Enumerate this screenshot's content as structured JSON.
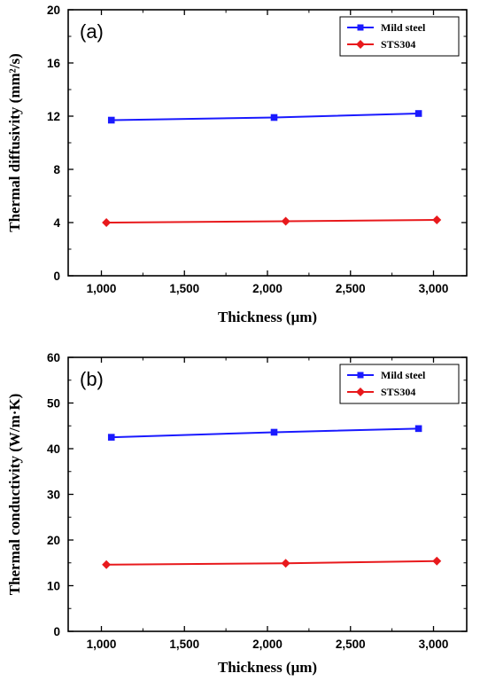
{
  "chart_data": [
    {
      "type": "line",
      "panel_label": "(a)",
      "xlabel": "Thickness (μm)",
      "ylabel": "Thermal diffusivity (mm²/s)",
      "xlim": [
        800,
        3200
      ],
      "ylim": [
        0,
        20
      ],
      "xticks": [
        1000,
        1500,
        2000,
        2500,
        3000
      ],
      "xtick_labels": [
        "1,000",
        "1,500",
        "2,000",
        "2,500",
        "3,000"
      ],
      "yticks": [
        0,
        4,
        8,
        12,
        16,
        20
      ],
      "ytick_labels": [
        "0",
        "4",
        "8",
        "12",
        "16",
        "20"
      ],
      "legend_position": "top-right",
      "grid": false,
      "series": [
        {
          "name": "Mild steel",
          "color": "#1a1aff",
          "marker": "square",
          "points": [
            [
              1060,
              11.7
            ],
            [
              2040,
              11.9
            ],
            [
              2910,
              12.2
            ]
          ]
        },
        {
          "name": "STS304",
          "color": "#e8191c",
          "marker": "diamond",
          "points": [
            [
              1030,
              4.0
            ],
            [
              2110,
              4.1
            ],
            [
              3020,
              4.2
            ]
          ]
        }
      ]
    },
    {
      "type": "line",
      "panel_label": "(b)",
      "xlabel": "Thickness (μm)",
      "ylabel": "Thermal conductivity (W/m·K)",
      "xlim": [
        800,
        3200
      ],
      "ylim": [
        0,
        60
      ],
      "xticks": [
        1000,
        1500,
        2000,
        2500,
        3000
      ],
      "xtick_labels": [
        "1,000",
        "1,500",
        "2,000",
        "2,500",
        "3,000"
      ],
      "yticks": [
        0,
        10,
        20,
        30,
        40,
        50,
        60
      ],
      "ytick_labels": [
        "0",
        "10",
        "20",
        "30",
        "40",
        "50",
        "60"
      ],
      "legend_position": "top-right",
      "grid": false,
      "series": [
        {
          "name": "Mild steel",
          "color": "#1a1aff",
          "marker": "square",
          "points": [
            [
              1060,
              42.5
            ],
            [
              2040,
              43.6
            ],
            [
              2910,
              44.4
            ]
          ]
        },
        {
          "name": "STS304",
          "color": "#e8191c",
          "marker": "diamond",
          "points": [
            [
              1030,
              14.6
            ],
            [
              2110,
              14.9
            ],
            [
              3020,
              15.4
            ]
          ]
        }
      ]
    }
  ]
}
